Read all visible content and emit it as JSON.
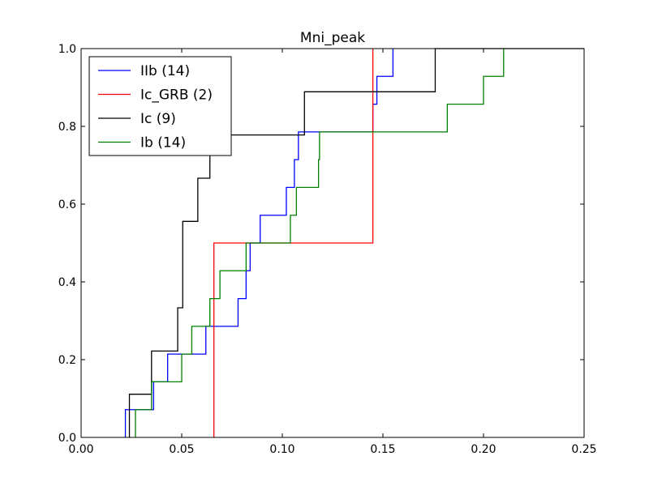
{
  "chart_data": {
    "type": "line",
    "subtype": "step-cdf",
    "title": "Mni_peak",
    "xlabel": "",
    "ylabel": "",
    "xlim": [
      0.0,
      0.25
    ],
    "ylim": [
      0.0,
      1.0
    ],
    "xticks": [
      "0.00",
      "0.05",
      "0.10",
      "0.15",
      "0.20",
      "0.25"
    ],
    "yticks": [
      "0.0",
      "0.2",
      "0.4",
      "0.6",
      "0.8",
      "1.0"
    ],
    "grid": false,
    "legend_position": "top-left",
    "series": [
      {
        "name": "IIb (14)",
        "color": "#0000ff",
        "x": [
          0.022,
          0.022,
          0.036,
          0.036,
          0.043,
          0.043,
          0.062,
          0.062,
          0.078,
          0.078,
          0.082,
          0.082,
          0.084,
          0.084,
          0.089,
          0.089,
          0.102,
          0.102,
          0.106,
          0.106,
          0.108,
          0.108,
          0.145,
          0.145,
          0.147,
          0.147,
          0.155,
          0.155
        ],
        "y": [
          0.0,
          0.0714,
          0.0714,
          0.1429,
          0.1429,
          0.2143,
          0.2143,
          0.2857,
          0.2857,
          0.3571,
          0.3571,
          0.4286,
          0.4286,
          0.5,
          0.5,
          0.5714,
          0.5714,
          0.6429,
          0.6429,
          0.7143,
          0.7143,
          0.7857,
          0.7857,
          0.8571,
          0.8571,
          0.9286,
          0.9286,
          1.0
        ]
      },
      {
        "name": "Ic_GRB (2)",
        "color": "#ff0000",
        "x": [
          0.066,
          0.066,
          0.145,
          0.145
        ],
        "y": [
          0.0,
          0.5,
          0.5,
          1.0
        ]
      },
      {
        "name": "Ic (9)",
        "color": "#000000",
        "x": [
          0.024,
          0.024,
          0.035,
          0.035,
          0.048,
          0.048,
          0.0505,
          0.0505,
          0.058,
          0.058,
          0.064,
          0.064,
          0.069,
          0.069,
          0.111,
          0.111,
          0.176,
          0.176,
          0.25
        ],
        "y": [
          0.0,
          0.1111,
          0.1111,
          0.2222,
          0.2222,
          0.3333,
          0.3333,
          0.5556,
          0.5556,
          0.6667,
          0.6667,
          0.7778,
          0.7778,
          0.7778,
          0.7778,
          0.8889,
          0.8889,
          1.0,
          1.0
        ]
      },
      {
        "name": "Ib (14)",
        "color": "#008000",
        "x": [
          0.027,
          0.027,
          0.035,
          0.035,
          0.05,
          0.05,
          0.055,
          0.055,
          0.064,
          0.064,
          0.069,
          0.069,
          0.082,
          0.082,
          0.104,
          0.104,
          0.107,
          0.107,
          0.118,
          0.118,
          0.1185,
          0.1185,
          0.182,
          0.182,
          0.2,
          0.2,
          0.21,
          0.21
        ],
        "y": [
          0.0,
          0.0714,
          0.0714,
          0.1429,
          0.1429,
          0.2143,
          0.2143,
          0.2857,
          0.2857,
          0.3571,
          0.3571,
          0.4286,
          0.4286,
          0.5,
          0.5,
          0.5714,
          0.5714,
          0.6429,
          0.6429,
          0.7143,
          0.7143,
          0.7857,
          0.7857,
          0.8571,
          0.8571,
          0.9286,
          0.9286,
          1.0
        ]
      }
    ]
  }
}
